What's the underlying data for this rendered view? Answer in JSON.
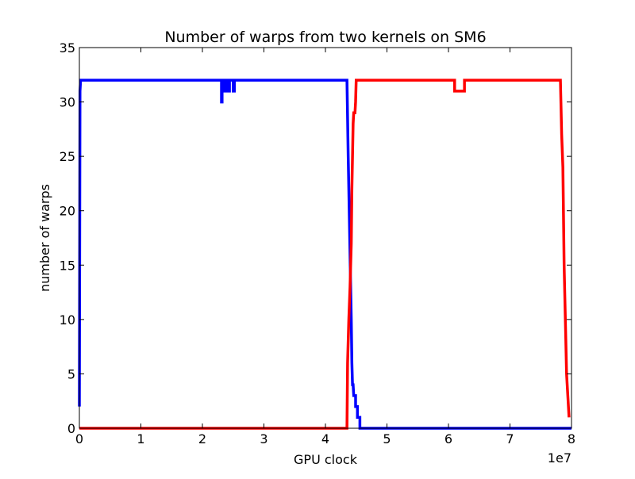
{
  "chart_data": {
    "type": "line",
    "title": "Number of warps from two kernels on SM6",
    "xlabel": "GPU clock",
    "ylabel": "number of warps",
    "x_offset_label": "1e7",
    "xlim": [
      0,
      8
    ],
    "ylim": [
      0,
      35
    ],
    "x_ticks": [
      0,
      1,
      2,
      3,
      4,
      5,
      6,
      7,
      8
    ],
    "y_ticks": [
      0,
      5,
      10,
      15,
      20,
      25,
      30,
      35
    ],
    "x_tick_labels": [
      "0",
      "1",
      "2",
      "3",
      "4",
      "5",
      "6",
      "7",
      "8"
    ],
    "y_tick_labels": [
      "0",
      "5",
      "10",
      "15",
      "20",
      "25",
      "30",
      "35"
    ],
    "grid": false,
    "legend": "none",
    "series": [
      {
        "color": "#0000ff",
        "x": [
          0,
          0.01,
          0.02,
          2.31,
          2.31,
          2.32,
          2.32,
          2.36,
          2.36,
          2.38,
          2.38,
          2.42,
          2.42,
          2.44,
          2.44,
          2.5,
          2.5,
          2.52,
          2.52,
          4.35,
          4.37,
          4.39,
          4.41,
          4.42,
          4.43,
          4.44,
          4.45,
          4.46,
          4.47,
          4.47,
          4.49,
          4.49,
          4.52,
          4.52,
          4.56,
          4.56,
          8.0
        ],
        "y": [
          2,
          31,
          32,
          32,
          30,
          30,
          32,
          32,
          31,
          31,
          32,
          32,
          31,
          31,
          32,
          32,
          31,
          31,
          32,
          32,
          25,
          19,
          13,
          10,
          6,
          4,
          4,
          3,
          3,
          3,
          3,
          2,
          2,
          1,
          1,
          0,
          0
        ]
      },
      {
        "color": "#ff0000",
        "x": [
          0,
          4.35,
          4.36,
          4.38,
          4.4,
          4.42,
          4.43,
          4.45,
          4.46,
          4.48,
          4.49,
          4.5,
          4.52,
          6.1,
          6.1,
          6.26,
          6.26,
          7.82,
          7.84,
          7.86,
          7.88,
          7.9,
          7.92,
          7.94,
          7.96
        ],
        "y": [
          0,
          0,
          6,
          10,
          13,
          17,
          22,
          28,
          29,
          29,
          30,
          32,
          32,
          32,
          31,
          31,
          32,
          32,
          27,
          24,
          15,
          10,
          5,
          3,
          1
        ]
      }
    ]
  }
}
